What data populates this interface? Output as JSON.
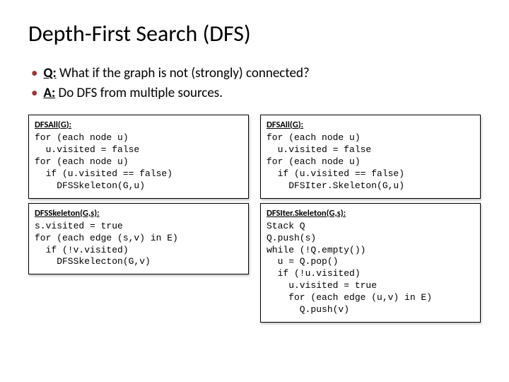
{
  "title": "Depth-First Search (DFS)",
  "bullets": [
    {
      "label": "Q:",
      "text": " What if the graph is not (strongly) connected?"
    },
    {
      "label": "A:",
      "text": " Do DFS from multiple sources."
    }
  ],
  "colors": {
    "bullet_dot": "#a33333",
    "background": "#ffffff",
    "text": "#000000",
    "box_border": "#000000",
    "box_shadow": "rgba(0,0,0,0.25)"
  },
  "typography": {
    "title_fontsize": 32,
    "bullet_fontsize": 19,
    "fnhead_fontsize": 12.5,
    "code_fontsize": 13,
    "code_family": "Courier New"
  },
  "left": {
    "box1": {
      "head": "DFSAll(G):",
      "code": "for (each node u)\n  u.visited = false\nfor (each node u)\n  if (u.visited == false)\n    DFSSkeleton(G,u)"
    },
    "box2": {
      "head": "DFSSkeleton(G,s):",
      "code": "s.visited = true\nfor (each edge (s,v) in E)\n  if (!v.visited)\n    DFSSkelecton(G,v)"
    }
  },
  "right": {
    "box1": {
      "head": "DFSAll(G):",
      "code": "for (each node u)\n  u.visited = false\nfor (each node u)\n  if (u.visited == false)\n    DFSIter.Skeleton(G,u)"
    },
    "box2": {
      "head": "DFSIter.Skeleton(G,s):",
      "code": "Stack Q\nQ.push(s)\nwhile (!Q.empty())\n  u = Q.pop()\n  if (!u.visited)\n    u.visited = true\n    for (each edge (u,v) in E)\n      Q.push(v)"
    }
  }
}
